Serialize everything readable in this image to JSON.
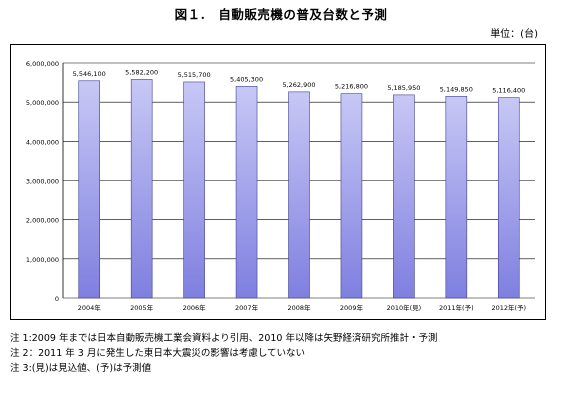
{
  "title": "図１.　自動販売機の普及台数と予測",
  "unit_label": "単位：(台)",
  "notes": [
    "注 1:2009 年までは日本自動販売機工業会資料より引用、2010 年以降は矢野経済研究所推計・予測",
    "注 2：2011 年 3 月に発生した東日本大震災の影響は考慮していない",
    "注 3:(見)は見込値、(予)は予測値"
  ],
  "colors": {
    "bar_fill_top": "#c7c8f5",
    "bar_fill_bottom": "#7f7fe0",
    "bar_stroke": "#404090",
    "gridline": "#000000"
  },
  "chart_data": {
    "type": "bar",
    "categories": [
      "2004年",
      "2005年",
      "2006年",
      "2007年",
      "2008年",
      "2009年",
      "2010年(見)",
      "2011年(予)",
      "2012年(予)"
    ],
    "values": [
      5546100,
      5582200,
      5515700,
      5405300,
      5262900,
      5216800,
      5185950,
      5149850,
      5116400
    ],
    "value_labels": [
      "5,546,100",
      "5,582,200",
      "5,515,700",
      "5,405,300",
      "5,262,900",
      "5,216,800",
      "5,185,950",
      "5,149,850",
      "5,116,400"
    ],
    "ylim": [
      0,
      6000000
    ],
    "y_ticks": [
      0,
      1000000,
      2000000,
      3000000,
      4000000,
      5000000,
      6000000
    ],
    "y_tick_labels": [
      "0",
      "1,000,000",
      "2,000,000",
      "3,000,000",
      "4,000,000",
      "5,000,000",
      "6,000,000"
    ],
    "grid": true,
    "legend": "none"
  }
}
